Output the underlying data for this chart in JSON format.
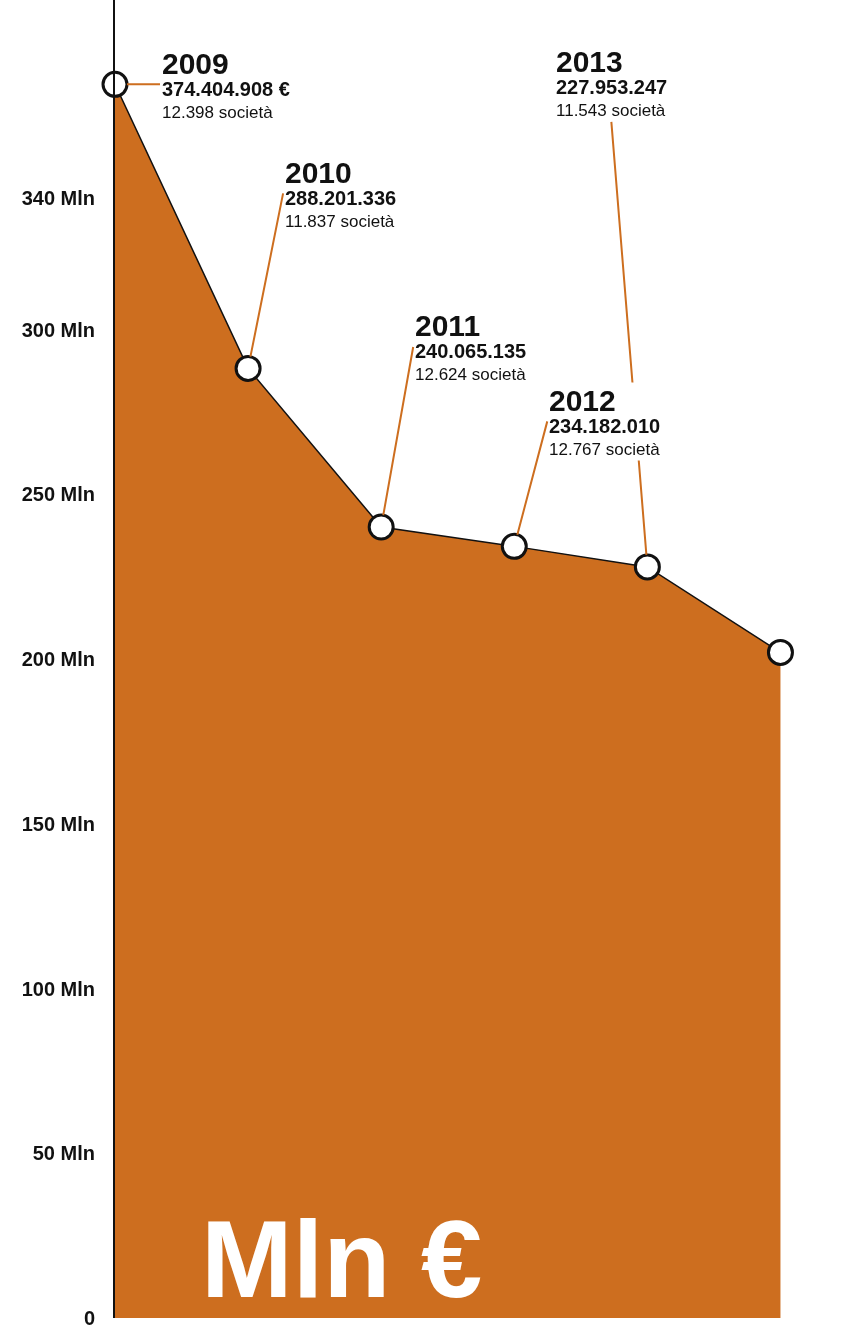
{
  "chart_data": {
    "type": "area",
    "categories": [
      null,
      null,
      null,
      null,
      null,
      null
    ],
    "values": [
      374.404908,
      288.201336,
      240.065135,
      234.18201,
      227.953247,
      202
    ],
    "color": "#cd6e1f",
    "marker": "circle",
    "line_style": "solid",
    "grid": false,
    "legend": false,
    "tick_labels": "y",
    "ylim": [
      0,
      400
    ],
    "yticks": [
      0,
      {
        "value": 50,
        "label": "50 Mln"
      },
      {
        "value": 100,
        "label": "100 Mln"
      },
      {
        "value": 150,
        "label": "150 Mln"
      },
      {
        "value": 200,
        "label": "200 Mln"
      },
      {
        "value": 250,
        "label": "250 Mln"
      },
      {
        "value": 300,
        "label": "300 Mln"
      },
      {
        "value": 340,
        "label": "340 Mln"
      }
    ],
    "annotations": [
      "2009\n374.404.908 €\n12.398 società",
      "2010\n288.201.336\n11.837 società",
      "2011\n240.065.135\n12.624 società",
      "2012\n234.182.010\n12.767 società",
      "2013\n227.953.247\n11.543 società",
      "Mln €"
    ]
  }
}
